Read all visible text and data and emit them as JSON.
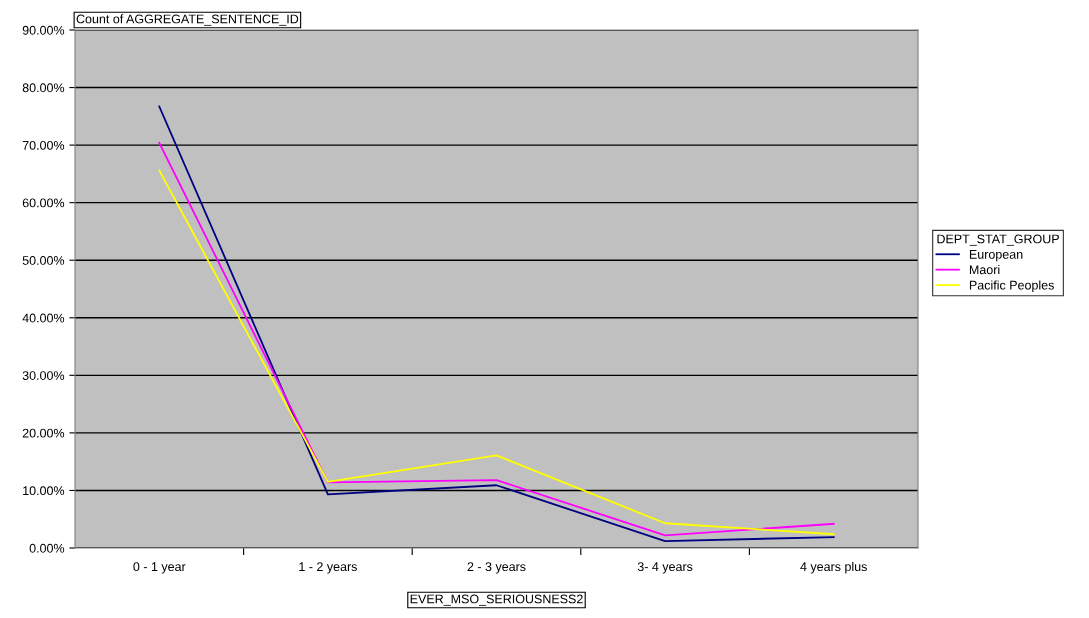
{
  "chart_data": {
    "type": "line",
    "title": "Count of AGGREGATE_SENTENCE_ID",
    "xlabel": "EVER_MSO_SERIOUSNESS2",
    "legend_title": "DEPT_STAT_GROUP",
    "categories": [
      "0 - 1 year",
      "1 - 2 years",
      "2 - 3 years",
      "3- 4 years",
      "4 years plus"
    ],
    "series": [
      {
        "name": "European",
        "color": "#000080",
        "values": [
          76.7,
          9.3,
          10.9,
          1.2,
          1.9
        ]
      },
      {
        "name": "Maori",
        "color": "#ff00ff",
        "values": [
          70.4,
          11.4,
          11.8,
          2.2,
          4.2
        ]
      },
      {
        "name": "Pacific Peoples",
        "color": "#ffff00",
        "values": [
          65.6,
          11.5,
          16.1,
          4.3,
          2.4
        ]
      }
    ],
    "ylim": [
      0,
      90
    ],
    "yticks": [
      {
        "value": 0,
        "label": "0.00%"
      },
      {
        "value": 10,
        "label": "10.00%"
      },
      {
        "value": 20,
        "label": "20.00%"
      },
      {
        "value": 30,
        "label": "30.00%"
      },
      {
        "value": 40,
        "label": "40.00%"
      },
      {
        "value": 50,
        "label": "50.00%"
      },
      {
        "value": 60,
        "label": "60.00%"
      },
      {
        "value": 70,
        "label": "70.00%"
      },
      {
        "value": 80,
        "label": "80.00%"
      },
      {
        "value": 90,
        "label": "90.00%"
      }
    ],
    "grid": "y",
    "legend": "right",
    "marker": "none",
    "line_style": "solid"
  }
}
